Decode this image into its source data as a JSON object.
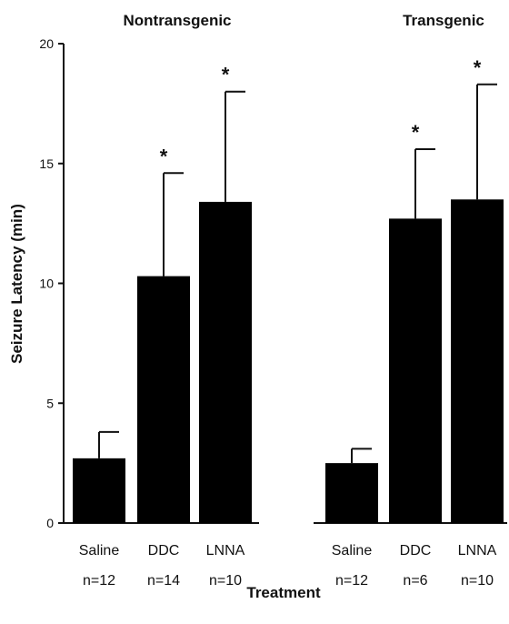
{
  "chart_data": {
    "type": "bar",
    "groups": [
      {
        "name": "Nontransgenic",
        "categories": [
          "Saline",
          "DDC",
          "LNNA"
        ],
        "n": [
          "n=12",
          "n=14",
          "n=10"
        ]
      },
      {
        "name": "Transgenic",
        "categories": [
          "Saline",
          "DDC",
          "LNNA"
        ],
        "n": [
          "n=12",
          "n=6",
          "n=10"
        ]
      }
    ],
    "values": [
      2.7,
      10.3,
      13.4,
      2.5,
      12.7,
      13.5
    ],
    "errors": [
      1.1,
      4.3,
      4.6,
      0.6,
      2.9,
      4.8
    ],
    "significance": [
      "",
      "*",
      "*",
      "",
      "*",
      "*"
    ],
    "xlabel": "Treatment",
    "ylabel": "Seizure Latency (min)",
    "ylim": [
      0,
      20
    ],
    "yticks": [
      "0",
      "5",
      "10",
      "15",
      "20"
    ],
    "bar_color": "#000000"
  }
}
